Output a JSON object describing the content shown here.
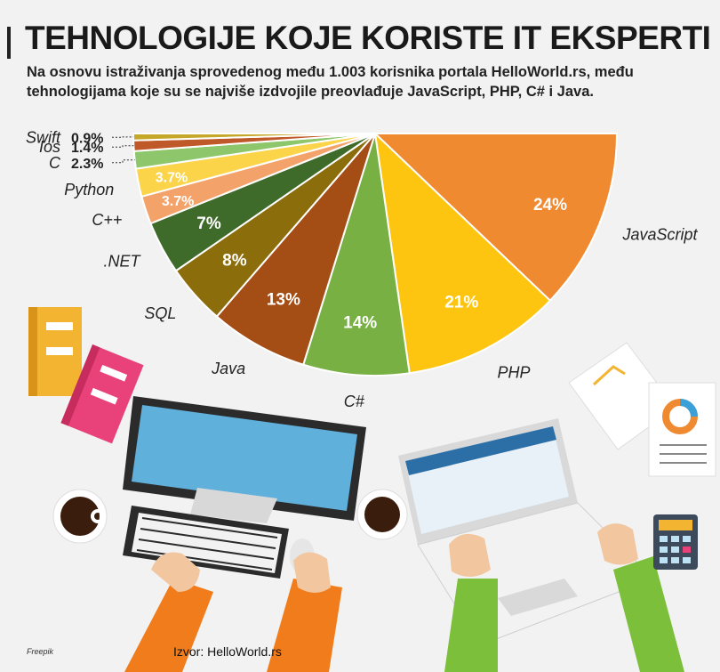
{
  "header": {
    "title": "TEHNOLOGIJE KOJE KORISTE IT EKSPERTI",
    "subtitle": "Na osnovu istraživanja sprovedenog među 1.003 korisnika portala HelloWorld.rs, među tehnologijama koje su se najviše izdvojile preovlađuje JavaScript, PHP, C# i Java."
  },
  "footer": {
    "source": "Izvor: HelloWorld.rs",
    "credit": "Freepik"
  },
  "chart_data": {
    "type": "pie",
    "title": "",
    "series": [
      {
        "name": "JavaScript",
        "value": 24,
        "label": "24%",
        "color": "#f08a31"
      },
      {
        "name": "PHP",
        "value": 21,
        "label": "21%",
        "color": "#fdc50f"
      },
      {
        "name": "C#",
        "value": 14,
        "label": "14%",
        "color": "#78b044"
      },
      {
        "name": "Java",
        "value": 13,
        "label": "13%",
        "color": "#a44e16"
      },
      {
        "name": "SQL",
        "value": 8,
        "label": "8%",
        "color": "#8c6d0c"
      },
      {
        "name": ".NET",
        "value": 7,
        "label": "7%",
        "color": "#3f6b2a"
      },
      {
        "name": "C++",
        "value": 3.7,
        "label": "3.7%",
        "color": "#f3a26a"
      },
      {
        "name": "Python",
        "value": 3.7,
        "label": "3.7%",
        "color": "#fbd44a"
      },
      {
        "name": "C",
        "value": 2.3,
        "label": "2.3%",
        "color": "#8dc66b"
      },
      {
        "name": "Ios",
        "value": 1.4,
        "label": "1.4%",
        "color": "#c0592a"
      },
      {
        "name": "Swift",
        "value": 0.9,
        "label": "0.9%",
        "color": "#c5a82a"
      }
    ],
    "legend": "labels beside slices",
    "shape": "semicircle"
  }
}
